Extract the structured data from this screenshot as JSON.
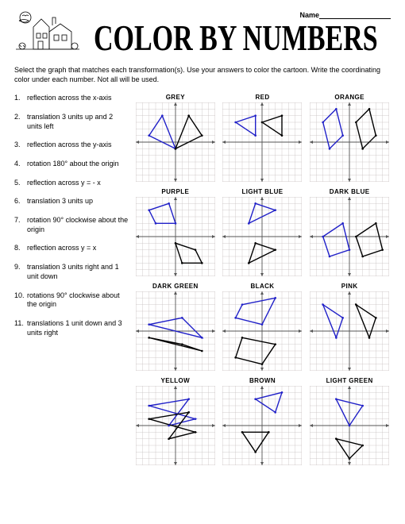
{
  "header": {
    "name_label": "Name",
    "title": "COLOR BY NUMBERS"
  },
  "instructions": "Select the graph that matches each transformation(s). Use your answers to color the cartoon. Write the coordinating color under each number. Not all will be used.",
  "questions": [
    "reflection across the x-axis",
    "translation 3 units up and 2 units left",
    "reflection across the y-axis",
    "rotation 180° about the origin",
    "reflection across y = - x",
    "translation 3 units up",
    "rotation 90° clockwise about the origin",
    "reflection across y = x",
    "translation 3 units right and 1 unit down",
    "rotations 90° clockwise about the origin",
    "translations 1 unit down and 3 units right"
  ],
  "graphs": [
    {
      "label": "GREY",
      "preimage": [
        [
          -2,
          4
        ],
        [
          -4,
          1
        ],
        [
          0,
          -1
        ]
      ],
      "image": [
        [
          2,
          4
        ],
        [
          4,
          1
        ],
        [
          0,
          -1
        ]
      ]
    },
    {
      "label": "RED",
      "preimage": [
        [
          -4,
          3
        ],
        [
          -1,
          4
        ],
        [
          -1,
          1
        ]
      ],
      "image": [
        [
          0,
          3
        ],
        [
          3,
          4
        ],
        [
          3,
          1
        ]
      ]
    },
    {
      "label": "ORANGE",
      "preimage": [
        [
          -4,
          3
        ],
        [
          -2,
          5
        ],
        [
          -1,
          1
        ],
        [
          -3,
          -1
        ]
      ],
      "image": [
        [
          1,
          3
        ],
        [
          3,
          5
        ],
        [
          4,
          1
        ],
        [
          2,
          -1
        ]
      ]
    },
    {
      "label": "PURPLE",
      "preimage": [
        [
          -4,
          4
        ],
        [
          -1,
          5
        ],
        [
          0,
          2
        ],
        [
          -3,
          2
        ]
      ],
      "image": [
        [
          0,
          -1
        ],
        [
          3,
          -2
        ],
        [
          4,
          -4
        ],
        [
          1,
          -4
        ]
      ]
    },
    {
      "label": "LIGHT BLUE",
      "preimage": [
        [
          -1,
          5
        ],
        [
          2,
          4
        ],
        [
          -2,
          2
        ]
      ],
      "image": [
        [
          -1,
          -1
        ],
        [
          2,
          -2
        ],
        [
          -2,
          -4
        ]
      ]
    },
    {
      "label": "DARK BLUE",
      "preimage": [
        [
          -4,
          0
        ],
        [
          -1,
          2
        ],
        [
          0,
          -2
        ],
        [
          -3,
          -3
        ]
      ],
      "image": [
        [
          1,
          0
        ],
        [
          4,
          2
        ],
        [
          5,
          -2
        ],
        [
          2,
          -3
        ]
      ]
    },
    {
      "label": "DARK GREEN",
      "preimage": [
        [
          -4,
          1
        ],
        [
          1,
          2
        ],
        [
          4,
          -1
        ]
      ],
      "image": [
        [
          -4,
          -1
        ],
        [
          1,
          -2
        ],
        [
          4,
          -3
        ]
      ]
    },
    {
      "label": "BLACK",
      "preimage": [
        [
          -3,
          4
        ],
        [
          2,
          5
        ],
        [
          0,
          1
        ],
        [
          -4,
          2
        ]
      ],
      "image": [
        [
          -3,
          -1
        ],
        [
          2,
          -2
        ],
        [
          0,
          -5
        ],
        [
          -4,
          -4
        ]
      ]
    },
    {
      "label": "PINK",
      "preimage": [
        [
          -4,
          4
        ],
        [
          -1,
          2
        ],
        [
          -2,
          -1
        ]
      ],
      "image": [
        [
          1,
          4
        ],
        [
          4,
          2
        ],
        [
          3,
          -1
        ]
      ]
    },
    {
      "label": "YELLOW",
      "preimage": [
        [
          -4,
          3
        ],
        [
          2,
          4
        ],
        [
          -1,
          0
        ],
        [
          3,
          1
        ]
      ],
      "image": [
        [
          -4,
          1
        ],
        [
          2,
          2
        ],
        [
          -1,
          -2
        ],
        [
          3,
          -1
        ]
      ]
    },
    {
      "label": "BROWN",
      "preimage": [
        [
          -1,
          4
        ],
        [
          3,
          5
        ],
        [
          2,
          2
        ]
      ],
      "image": [
        [
          -3,
          -1
        ],
        [
          -1,
          -4
        ],
        [
          1,
          -1
        ]
      ]
    },
    {
      "label": "LIGHT GREEN",
      "preimage": [
        [
          -2,
          4
        ],
        [
          2,
          3
        ],
        [
          0,
          0
        ]
      ],
      "image": [
        [
          -2,
          -2
        ],
        [
          2,
          -3
        ],
        [
          0,
          -5
        ]
      ]
    }
  ],
  "style": {
    "grid_extent": 6,
    "grid_color": "#c7bfbf",
    "axis_color": "#555555",
    "preimage_stroke": "#2020c8",
    "preimage_fill": "none",
    "image_stroke": "#000000",
    "image_fill": "none",
    "stroke_width": 1.4,
    "background": "#ffffff",
    "font_family": "Arial",
    "title_fontsize": 34,
    "body_fontsize": 9,
    "label_fontsize": 8
  }
}
